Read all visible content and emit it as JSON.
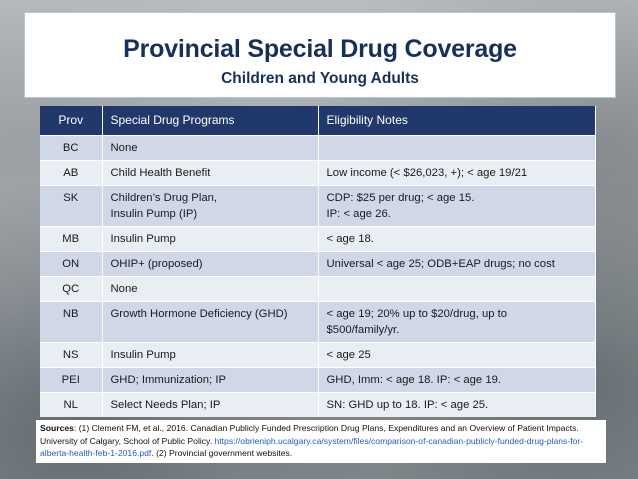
{
  "header": {
    "title": "Provincial Special Drug Coverage",
    "subtitle": "Children and Young Adults"
  },
  "table": {
    "columns": [
      "Prov",
      "Special Drug Programs",
      "Eligibility Notes"
    ],
    "rows": [
      {
        "prov": "BC",
        "program": [
          "None"
        ],
        "notes": [
          ""
        ]
      },
      {
        "prov": "AB",
        "program": [
          "Child Health Benefit"
        ],
        "notes": [
          "Low income (< $26,023, +); < age 19/21"
        ]
      },
      {
        "prov": "SK",
        "program": [
          "Children’s Drug Plan,",
          "Insulin Pump (IP)"
        ],
        "notes": [
          "CDP: $25 per drug; < age 15.",
          "IP: < age 26."
        ]
      },
      {
        "prov": "MB",
        "program": [
          "Insulin Pump"
        ],
        "notes": [
          "< age 18."
        ]
      },
      {
        "prov": "ON",
        "program": [
          "OHIP+ (proposed)"
        ],
        "notes": [
          "Universal < age 25; ODB+EAP drugs; no cost"
        ]
      },
      {
        "prov": "QC",
        "program": [
          "None"
        ],
        "notes": [
          ""
        ]
      },
      {
        "prov": "NB",
        "program": [
          "Growth Hormone Deficiency (GHD)"
        ],
        "notes": [
          "< age 19; 20% up to $20/drug, up to",
          "$500/family/yr."
        ]
      },
      {
        "prov": "NS",
        "program": [
          "Insulin Pump"
        ],
        "notes": [
          "< age 25"
        ]
      },
      {
        "prov": "PEI",
        "program": [
          "GHD; Immunization; IP"
        ],
        "notes": [
          "GHD, Imm: < age 18. IP: < age 19."
        ]
      },
      {
        "prov": "NL",
        "program": [
          "Select Needs Plan; IP"
        ],
        "notes": [
          "SN: GHD up to 18. IP: < age 25."
        ]
      }
    ]
  },
  "sources": {
    "label": "Sources",
    "text_before": ": (1) Clement FM, et al., 2016. Canadian Publicly Funded Prescription Drug Plans, Expenditures and an Overview of Patient Impacts. University of Calgary, School of Public Policy. ",
    "link": "https://obrieniph.ucalgary.ca/system/files/comparison-of-canadian-publicly-funded-drug-plans-for-alberta-health-feb-1-2016.pdf",
    "text_after": ". (2) Provincial government websites."
  },
  "colors": {
    "title": "#17305a",
    "header_bg": "#20396a",
    "row_odd": "#d0d8e8",
    "row_even": "#e9edf4",
    "link": "#1f5fbf"
  }
}
